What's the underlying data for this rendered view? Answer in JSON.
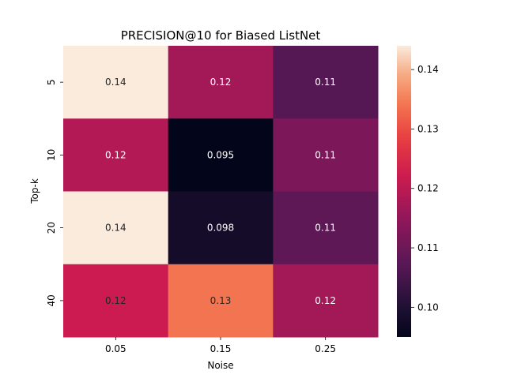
{
  "chart_data": {
    "type": "heatmap",
    "title": "PRECISION@10 for Biased ListNet",
    "xlabel": "Noise",
    "ylabel": "Top-k",
    "x_categories": [
      "0.05",
      "0.15",
      "0.25"
    ],
    "y_categories": [
      "5",
      "10",
      "20",
      "40"
    ],
    "values": [
      [
        0.144,
        0.117,
        0.107
      ],
      [
        0.119,
        0.095,
        0.112
      ],
      [
        0.144,
        0.098,
        0.108
      ],
      [
        0.122,
        0.134,
        0.117
      ]
    ],
    "annotations": [
      [
        "0.14",
        "0.12",
        "0.11"
      ],
      [
        "0.12",
        "0.095",
        "0.11"
      ],
      [
        "0.14",
        "0.098",
        "0.11"
      ],
      [
        "0.12",
        "0.13",
        "0.12"
      ]
    ],
    "colorbar": {
      "vmin": 0.095,
      "vmax": 0.144,
      "ticks": [
        "0.10",
        "0.11",
        "0.12",
        "0.13",
        "0.14"
      ],
      "colormap": "rocket"
    },
    "grid": false,
    "legend": "colorbar-right"
  }
}
